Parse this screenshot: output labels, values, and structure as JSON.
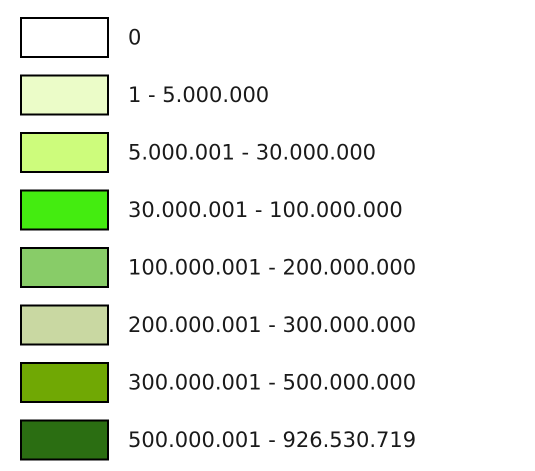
{
  "legend": {
    "items": [
      {
        "label": "0",
        "color": "#ffffff"
      },
      {
        "label": "1 - 5.000.000",
        "color": "#ebfcc8"
      },
      {
        "label": "5.000.001 - 30.000.000",
        "color": "#cdfc7c"
      },
      {
        "label": "30.000.001 - 100.000.000",
        "color": "#44ec10"
      },
      {
        "label": "100.000.001 - 200.000.000",
        "color": "#88cc68"
      },
      {
        "label": "200.000.001 - 300.000.000",
        "color": "#c9d8a2"
      },
      {
        "label": "300.000.001 - 500.000.000",
        "color": "#70a804"
      },
      {
        "label": "500.000.001 - 926.530.719",
        "color": "#2b6e12"
      }
    ]
  }
}
